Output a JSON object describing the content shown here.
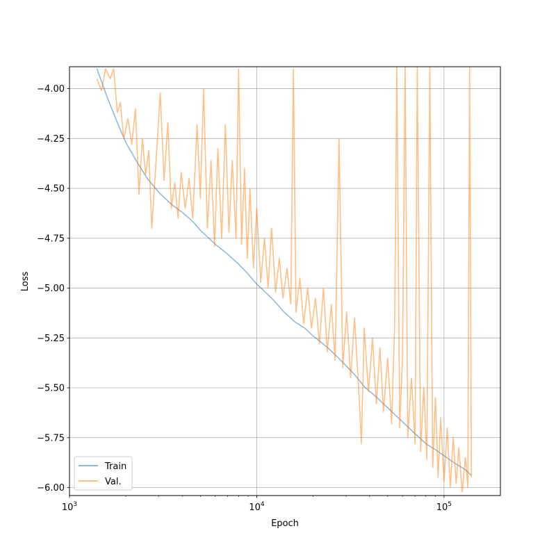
{
  "chart_data": {
    "type": "line",
    "title": "",
    "xlabel": "Epoch",
    "ylabel": "Loss",
    "xscale": "log",
    "xlim": [
      1000,
      200000
    ],
    "ylim": [
      -6.04,
      -3.89
    ],
    "x_ticks": [
      {
        "value": 1000,
        "base": "10",
        "exp": "3"
      },
      {
        "value": 10000,
        "base": "10",
        "exp": "4"
      },
      {
        "value": 100000,
        "base": "10",
        "exp": "5"
      }
    ],
    "y_ticks": [
      {
        "value": -4.0,
        "label": "−4.00"
      },
      {
        "value": -4.25,
        "label": "−4.25"
      },
      {
        "value": -4.5,
        "label": "−4.50"
      },
      {
        "value": -4.75,
        "label": "−4.75"
      },
      {
        "value": -5.0,
        "label": "−5.00"
      },
      {
        "value": -5.25,
        "label": "−5.25"
      },
      {
        "value": -5.5,
        "label": "−5.50"
      },
      {
        "value": -5.75,
        "label": "−5.75"
      },
      {
        "value": -6.0,
        "label": "−6.00"
      }
    ],
    "grid": true,
    "legend": {
      "placement": "lower-left",
      "entries": [
        "Train",
        "Val."
      ]
    },
    "series": [
      {
        "name": "Train",
        "color": "#1f77b4",
        "points": [
          [
            1400,
            -3.9
          ],
          [
            1600,
            -4.05
          ],
          [
            1800,
            -4.17
          ],
          [
            2000,
            -4.27
          ],
          [
            2300,
            -4.37
          ],
          [
            2600,
            -4.45
          ],
          [
            3000,
            -4.52
          ],
          [
            3500,
            -4.58
          ],
          [
            4000,
            -4.62
          ],
          [
            4600,
            -4.67
          ],
          [
            5000,
            -4.71
          ],
          [
            6000,
            -4.78
          ],
          [
            7000,
            -4.83
          ],
          [
            8000,
            -4.88
          ],
          [
            9000,
            -4.93
          ],
          [
            10000,
            -4.98
          ],
          [
            12000,
            -5.05
          ],
          [
            14000,
            -5.12
          ],
          [
            16000,
            -5.17
          ],
          [
            18000,
            -5.2
          ],
          [
            20000,
            -5.24
          ],
          [
            24000,
            -5.3
          ],
          [
            28000,
            -5.36
          ],
          [
            33000,
            -5.43
          ],
          [
            38000,
            -5.5
          ],
          [
            44000,
            -5.55
          ],
          [
            50000,
            -5.6
          ],
          [
            60000,
            -5.67
          ],
          [
            70000,
            -5.73
          ],
          [
            80000,
            -5.78
          ],
          [
            90000,
            -5.81
          ],
          [
            100000,
            -5.84
          ],
          [
            115000,
            -5.88
          ],
          [
            130000,
            -5.91
          ],
          [
            140000,
            -5.94
          ]
        ]
      },
      {
        "name": "Val.",
        "color": "#ff7f0e",
        "points": [
          [
            1400,
            -3.95
          ],
          [
            1480,
            -4.01
          ],
          [
            1560,
            -3.9
          ],
          [
            1650,
            -3.95
          ],
          [
            1720,
            -3.9
          ],
          [
            1800,
            -4.12
          ],
          [
            1870,
            -4.07
          ],
          [
            1950,
            -4.25
          ],
          [
            2050,
            -4.15
          ],
          [
            2150,
            -4.28
          ],
          [
            2250,
            -4.1
          ],
          [
            2350,
            -4.53
          ],
          [
            2450,
            -4.25
          ],
          [
            2550,
            -4.43
          ],
          [
            2650,
            -4.31
          ],
          [
            2750,
            -4.7
          ],
          [
            2900,
            -4.36
          ],
          [
            3050,
            -4.02
          ],
          [
            3200,
            -4.46
          ],
          [
            3350,
            -4.17
          ],
          [
            3500,
            -4.6
          ],
          [
            3650,
            -4.47
          ],
          [
            3800,
            -4.65
          ],
          [
            3950,
            -4.42
          ],
          [
            4150,
            -4.6
          ],
          [
            4350,
            -4.45
          ],
          [
            4550,
            -4.65
          ],
          [
            4800,
            -4.18
          ],
          [
            5000,
            -4.55
          ],
          [
            5200,
            -4.0
          ],
          [
            5450,
            -4.7
          ],
          [
            5700,
            -4.36
          ],
          [
            5950,
            -4.79
          ],
          [
            6200,
            -4.3
          ],
          [
            6500,
            -4.75
          ],
          [
            6800,
            -4.18
          ],
          [
            7100,
            -4.72
          ],
          [
            7400,
            -4.36
          ],
          [
            7750,
            -4.75
          ],
          [
            8000,
            -3.9
          ],
          [
            8300,
            -4.78
          ],
          [
            8600,
            -4.4
          ],
          [
            8900,
            -4.85
          ],
          [
            9200,
            -4.5
          ],
          [
            9600,
            -4.9
          ],
          [
            10000,
            -4.6
          ],
          [
            10500,
            -4.97
          ],
          [
            11000,
            -4.75
          ],
          [
            11500,
            -5.0
          ],
          [
            12000,
            -4.7
          ],
          [
            12600,
            -5.02
          ],
          [
            13200,
            -4.85
          ],
          [
            13800,
            -5.05
          ],
          [
            14500,
            -4.9
          ],
          [
            15200,
            -5.08
          ],
          [
            15700,
            -3.9
          ],
          [
            16200,
            -5.12
          ],
          [
            17000,
            -4.95
          ],
          [
            17800,
            -5.18
          ],
          [
            18700,
            -5.0
          ],
          [
            19600,
            -5.2
          ],
          [
            20600,
            -5.05
          ],
          [
            21600,
            -5.28
          ],
          [
            22700,
            -5.0
          ],
          [
            23800,
            -5.32
          ],
          [
            25000,
            -5.08
          ],
          [
            26200,
            -5.36
          ],
          [
            27500,
            -4.25
          ],
          [
            28800,
            -5.4
          ],
          [
            30200,
            -5.12
          ],
          [
            31700,
            -5.45
          ],
          [
            33300,
            -5.15
          ],
          [
            35000,
            -5.5
          ],
          [
            36200,
            -5.78
          ],
          [
            37500,
            -5.2
          ],
          [
            39500,
            -5.52
          ],
          [
            41500,
            -5.25
          ],
          [
            43500,
            -5.58
          ],
          [
            45500,
            -5.3
          ],
          [
            47500,
            -5.62
          ],
          [
            50000,
            -5.35
          ],
          [
            52500,
            -5.68
          ],
          [
            54500,
            -5.18
          ],
          [
            56000,
            -3.89
          ],
          [
            58000,
            -5.7
          ],
          [
            60000,
            -5.35
          ],
          [
            62000,
            -3.89
          ],
          [
            64000,
            -5.75
          ],
          [
            67000,
            -5.45
          ],
          [
            70000,
            -5.78
          ],
          [
            72000,
            -3.89
          ],
          [
            75000,
            -5.82
          ],
          [
            78000,
            -5.5
          ],
          [
            81000,
            -5.86
          ],
          [
            84000,
            -3.89
          ],
          [
            87000,
            -5.9
          ],
          [
            90000,
            -5.55
          ],
          [
            93000,
            -5.95
          ],
          [
            96000,
            -5.65
          ],
          [
            100000,
            -5.97
          ],
          [
            104000,
            -5.7
          ],
          [
            108000,
            -6.0
          ],
          [
            112000,
            -5.75
          ],
          [
            116000,
            -5.98
          ],
          [
            120000,
            -5.8
          ],
          [
            125000,
            -6.02
          ],
          [
            130000,
            -5.85
          ],
          [
            134000,
            -6.0
          ],
          [
            137000,
            -3.89
          ],
          [
            140000,
            -5.95
          ]
        ]
      }
    ]
  }
}
